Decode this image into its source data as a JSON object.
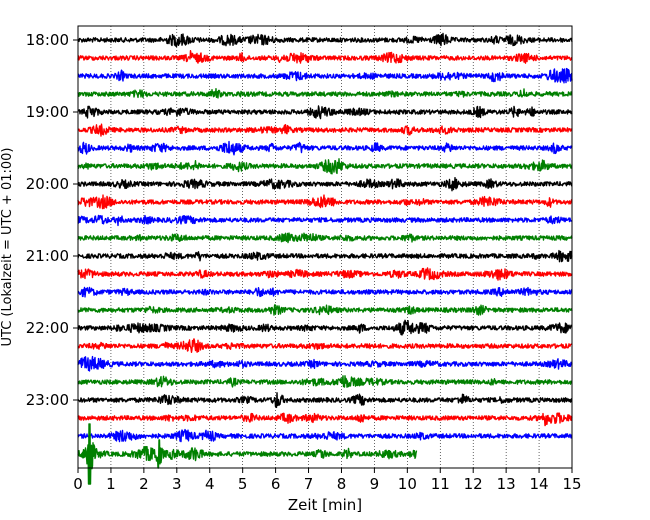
{
  "chart_data": {
    "type": "line",
    "title": "",
    "xlabel": "Zeit  [min]",
    "ylabel": "UTC (Lokalzeit = UTC + 01:00)",
    "xlim": [
      0,
      15
    ],
    "x_ticks": [
      "0",
      "1",
      "2",
      "3",
      "4",
      "5",
      "6",
      "7",
      "8",
      "9",
      "10",
      "11",
      "12",
      "13",
      "14",
      "15"
    ],
    "y_ticks": [
      "18:00",
      "19:00",
      "20:00",
      "21:00",
      "22:00",
      "23:00"
    ],
    "grid": "vertical dotted",
    "line_colors": [
      "#000000",
      "#ff0000",
      "#0000ff",
      "#008000"
    ],
    "traces": [
      {
        "start": "18:00",
        "end_min": 15
      },
      {
        "start": "18:15",
        "end_min": 15
      },
      {
        "start": "18:30",
        "end_min": 15
      },
      {
        "start": "18:45",
        "end_min": 15
      },
      {
        "start": "19:00",
        "end_min": 15
      },
      {
        "start": "19:15",
        "end_min": 15
      },
      {
        "start": "19:30",
        "end_min": 15
      },
      {
        "start": "19:45",
        "end_min": 15
      },
      {
        "start": "20:00",
        "end_min": 15
      },
      {
        "start": "20:15",
        "end_min": 15
      },
      {
        "start": "20:30",
        "end_min": 15
      },
      {
        "start": "20:45",
        "end_min": 15
      },
      {
        "start": "21:00",
        "end_min": 15
      },
      {
        "start": "21:15",
        "end_min": 15
      },
      {
        "start": "21:30",
        "end_min": 15
      },
      {
        "start": "21:45",
        "end_min": 15
      },
      {
        "start": "22:00",
        "end_min": 15
      },
      {
        "start": "22:15",
        "end_min": 15
      },
      {
        "start": "22:30",
        "end_min": 15
      },
      {
        "start": "22:45",
        "end_min": 15
      },
      {
        "start": "23:00",
        "end_min": 15
      },
      {
        "start": "23:15",
        "end_min": 15
      },
      {
        "start": "23:30",
        "end_min": 15
      },
      {
        "start": "23:45",
        "end_min": 10.3
      }
    ]
  }
}
